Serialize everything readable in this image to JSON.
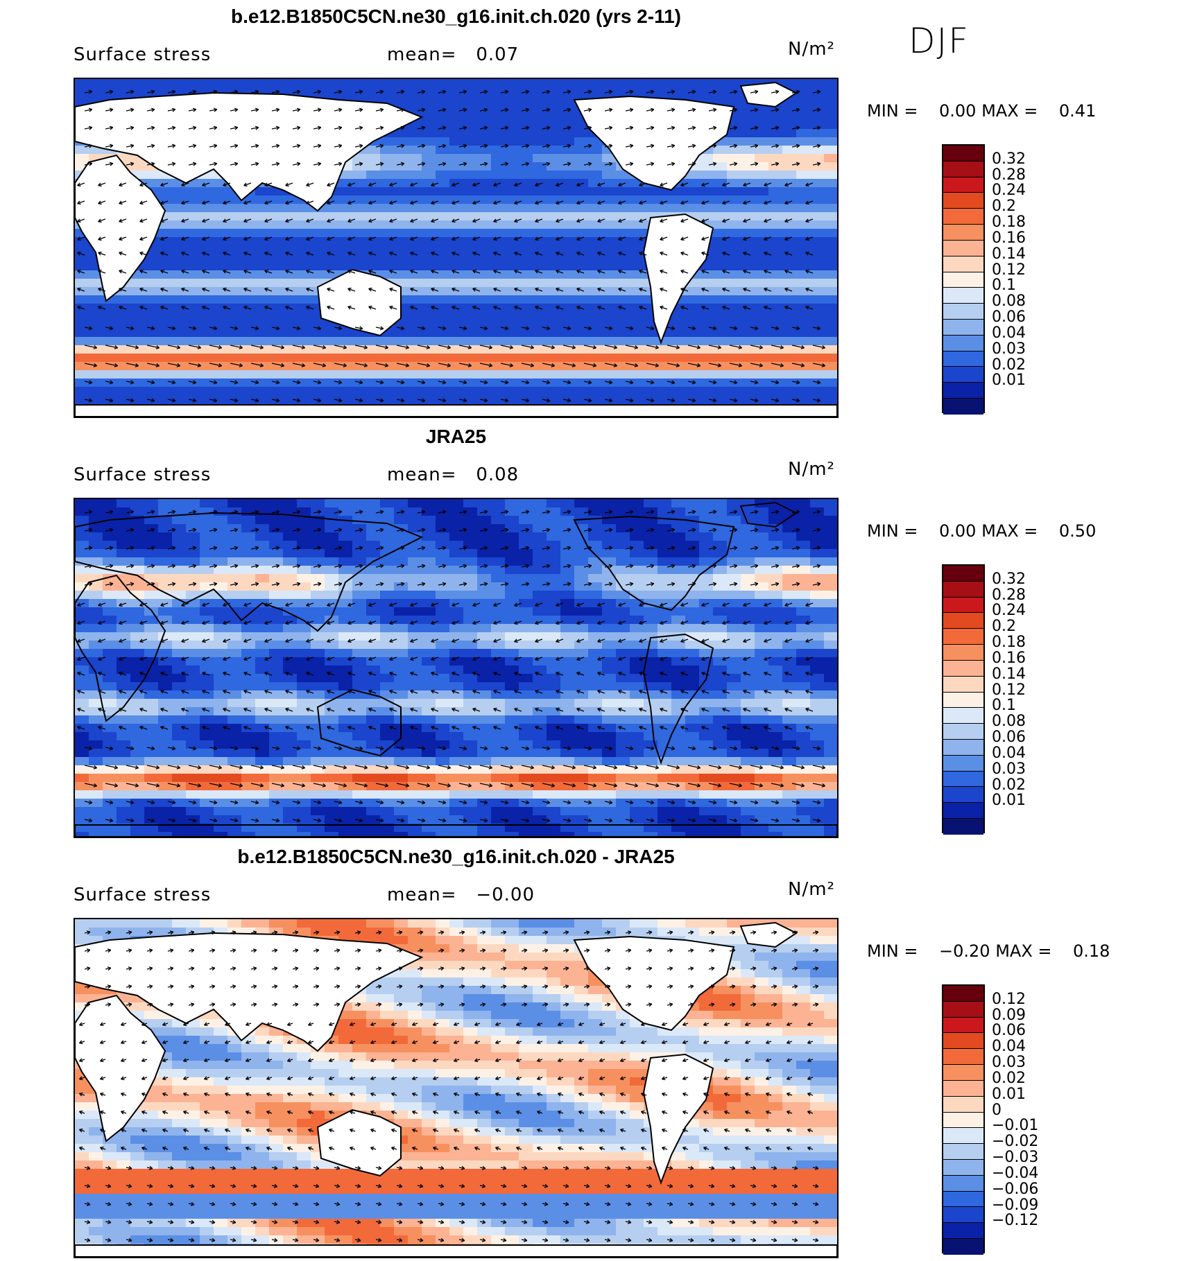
{
  "season": "DJF",
  "panels": [
    {
      "title": "b.e12.B1850C5CN.ne30_g16.init.ch.020 (yrs 2-11)",
      "variable": "Surface stress",
      "mean_label": "mean=",
      "mean": "0.07",
      "units": "N/m²",
      "min_label": "MIN =",
      "min": "0.00",
      "max_label": "MAX =",
      "max": "0.41",
      "colorbar_labels": [
        "0.32",
        "0.28",
        "0.24",
        "0.2",
        "0.18",
        "0.16",
        "0.14",
        "0.12",
        "0.1",
        "0.08",
        "0.06",
        "0.04",
        "0.03",
        "0.02",
        "0.01"
      ]
    },
    {
      "title": "JRA25",
      "variable": "Surface stress",
      "mean_label": "mean=",
      "mean": "0.08",
      "units": "N/m²",
      "min_label": "MIN =",
      "min": "0.00",
      "max_label": "MAX =",
      "max": "0.50",
      "colorbar_labels": [
        "0.32",
        "0.28",
        "0.24",
        "0.2",
        "0.18",
        "0.16",
        "0.14",
        "0.12",
        "0.1",
        "0.08",
        "0.06",
        "0.04",
        "0.03",
        "0.02",
        "0.01"
      ]
    },
    {
      "title": "b.e12.B1850C5CN.ne30_g16.init.ch.020 - JRA25",
      "variable": "Surface stress",
      "mean_label": "mean=",
      "mean": "−0.00",
      "units": "N/m²",
      "min_label": "MIN =",
      "min": "−0.20",
      "max_label": "MAX =",
      "max": "0.18",
      "colorbar_labels": [
        "0.12",
        "0.09",
        "0.06",
        "0.04",
        "0.03",
        "0.02",
        "0.01",
        "0",
        "−0.01",
        "−0.02",
        "−0.03",
        "−0.04",
        "−0.06",
        "−0.09",
        "−0.12"
      ]
    }
  ],
  "colorbar_colors": [
    "#67000d",
    "#a50f15",
    "#cb181d",
    "#e34a1f",
    "#f26a3a",
    "#f7905f",
    "#fbb393",
    "#fdd8c0",
    "#fdf1e6",
    "#dbe8f8",
    "#b6cff0",
    "#8fb3ec",
    "#5b8fe6",
    "#2f68df",
    "#1a45cc",
    "#0a22a8",
    "#081272"
  ]
}
